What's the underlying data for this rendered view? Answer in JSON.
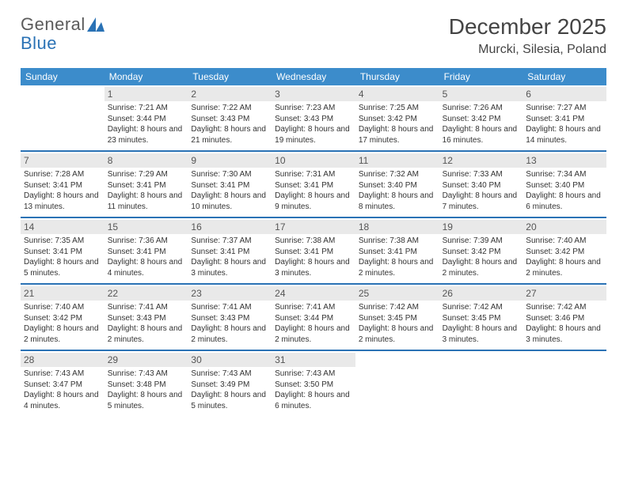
{
  "brand": {
    "name_general": "General",
    "name_blue": "Blue"
  },
  "title": "December 2025",
  "location": "Murcki, Silesia, Poland",
  "colors": {
    "header_bg": "#3c8ccb",
    "header_text": "#ffffff",
    "daynum_bg": "#e9e9e9",
    "week_border": "#2a72b5",
    "body_text": "#333333",
    "title_text": "#444444",
    "logo_gray": "#5b5b5b",
    "logo_blue": "#2a72b5"
  },
  "fonts": {
    "title_size": 28,
    "location_size": 16,
    "header_size": 12,
    "daynum_size": 12,
    "cell_size": 10
  },
  "day_headers": [
    "Sunday",
    "Monday",
    "Tuesday",
    "Wednesday",
    "Thursday",
    "Friday",
    "Saturday"
  ],
  "weeks": [
    [
      {
        "n": "",
        "sr": "",
        "ss": "",
        "dl": ""
      },
      {
        "n": "1",
        "sr": "Sunrise: 7:21 AM",
        "ss": "Sunset: 3:44 PM",
        "dl": "Daylight: 8 hours and 23 minutes."
      },
      {
        "n": "2",
        "sr": "Sunrise: 7:22 AM",
        "ss": "Sunset: 3:43 PM",
        "dl": "Daylight: 8 hours and 21 minutes."
      },
      {
        "n": "3",
        "sr": "Sunrise: 7:23 AM",
        "ss": "Sunset: 3:43 PM",
        "dl": "Daylight: 8 hours and 19 minutes."
      },
      {
        "n": "4",
        "sr": "Sunrise: 7:25 AM",
        "ss": "Sunset: 3:42 PM",
        "dl": "Daylight: 8 hours and 17 minutes."
      },
      {
        "n": "5",
        "sr": "Sunrise: 7:26 AM",
        "ss": "Sunset: 3:42 PM",
        "dl": "Daylight: 8 hours and 16 minutes."
      },
      {
        "n": "6",
        "sr": "Sunrise: 7:27 AM",
        "ss": "Sunset: 3:41 PM",
        "dl": "Daylight: 8 hours and 14 minutes."
      }
    ],
    [
      {
        "n": "7",
        "sr": "Sunrise: 7:28 AM",
        "ss": "Sunset: 3:41 PM",
        "dl": "Daylight: 8 hours and 13 minutes."
      },
      {
        "n": "8",
        "sr": "Sunrise: 7:29 AM",
        "ss": "Sunset: 3:41 PM",
        "dl": "Daylight: 8 hours and 11 minutes."
      },
      {
        "n": "9",
        "sr": "Sunrise: 7:30 AM",
        "ss": "Sunset: 3:41 PM",
        "dl": "Daylight: 8 hours and 10 minutes."
      },
      {
        "n": "10",
        "sr": "Sunrise: 7:31 AM",
        "ss": "Sunset: 3:41 PM",
        "dl": "Daylight: 8 hours and 9 minutes."
      },
      {
        "n": "11",
        "sr": "Sunrise: 7:32 AM",
        "ss": "Sunset: 3:40 PM",
        "dl": "Daylight: 8 hours and 8 minutes."
      },
      {
        "n": "12",
        "sr": "Sunrise: 7:33 AM",
        "ss": "Sunset: 3:40 PM",
        "dl": "Daylight: 8 hours and 7 minutes."
      },
      {
        "n": "13",
        "sr": "Sunrise: 7:34 AM",
        "ss": "Sunset: 3:40 PM",
        "dl": "Daylight: 8 hours and 6 minutes."
      }
    ],
    [
      {
        "n": "14",
        "sr": "Sunrise: 7:35 AM",
        "ss": "Sunset: 3:41 PM",
        "dl": "Daylight: 8 hours and 5 minutes."
      },
      {
        "n": "15",
        "sr": "Sunrise: 7:36 AM",
        "ss": "Sunset: 3:41 PM",
        "dl": "Daylight: 8 hours and 4 minutes."
      },
      {
        "n": "16",
        "sr": "Sunrise: 7:37 AM",
        "ss": "Sunset: 3:41 PM",
        "dl": "Daylight: 8 hours and 3 minutes."
      },
      {
        "n": "17",
        "sr": "Sunrise: 7:38 AM",
        "ss": "Sunset: 3:41 PM",
        "dl": "Daylight: 8 hours and 3 minutes."
      },
      {
        "n": "18",
        "sr": "Sunrise: 7:38 AM",
        "ss": "Sunset: 3:41 PM",
        "dl": "Daylight: 8 hours and 2 minutes."
      },
      {
        "n": "19",
        "sr": "Sunrise: 7:39 AM",
        "ss": "Sunset: 3:42 PM",
        "dl": "Daylight: 8 hours and 2 minutes."
      },
      {
        "n": "20",
        "sr": "Sunrise: 7:40 AM",
        "ss": "Sunset: 3:42 PM",
        "dl": "Daylight: 8 hours and 2 minutes."
      }
    ],
    [
      {
        "n": "21",
        "sr": "Sunrise: 7:40 AM",
        "ss": "Sunset: 3:42 PM",
        "dl": "Daylight: 8 hours and 2 minutes."
      },
      {
        "n": "22",
        "sr": "Sunrise: 7:41 AM",
        "ss": "Sunset: 3:43 PM",
        "dl": "Daylight: 8 hours and 2 minutes."
      },
      {
        "n": "23",
        "sr": "Sunrise: 7:41 AM",
        "ss": "Sunset: 3:43 PM",
        "dl": "Daylight: 8 hours and 2 minutes."
      },
      {
        "n": "24",
        "sr": "Sunrise: 7:41 AM",
        "ss": "Sunset: 3:44 PM",
        "dl": "Daylight: 8 hours and 2 minutes."
      },
      {
        "n": "25",
        "sr": "Sunrise: 7:42 AM",
        "ss": "Sunset: 3:45 PM",
        "dl": "Daylight: 8 hours and 2 minutes."
      },
      {
        "n": "26",
        "sr": "Sunrise: 7:42 AM",
        "ss": "Sunset: 3:45 PM",
        "dl": "Daylight: 8 hours and 3 minutes."
      },
      {
        "n": "27",
        "sr": "Sunrise: 7:42 AM",
        "ss": "Sunset: 3:46 PM",
        "dl": "Daylight: 8 hours and 3 minutes."
      }
    ],
    [
      {
        "n": "28",
        "sr": "Sunrise: 7:43 AM",
        "ss": "Sunset: 3:47 PM",
        "dl": "Daylight: 8 hours and 4 minutes."
      },
      {
        "n": "29",
        "sr": "Sunrise: 7:43 AM",
        "ss": "Sunset: 3:48 PM",
        "dl": "Daylight: 8 hours and 5 minutes."
      },
      {
        "n": "30",
        "sr": "Sunrise: 7:43 AM",
        "ss": "Sunset: 3:49 PM",
        "dl": "Daylight: 8 hours and 5 minutes."
      },
      {
        "n": "31",
        "sr": "Sunrise: 7:43 AM",
        "ss": "Sunset: 3:50 PM",
        "dl": "Daylight: 8 hours and 6 minutes."
      },
      {
        "n": "",
        "sr": "",
        "ss": "",
        "dl": ""
      },
      {
        "n": "",
        "sr": "",
        "ss": "",
        "dl": ""
      },
      {
        "n": "",
        "sr": "",
        "ss": "",
        "dl": ""
      }
    ]
  ]
}
